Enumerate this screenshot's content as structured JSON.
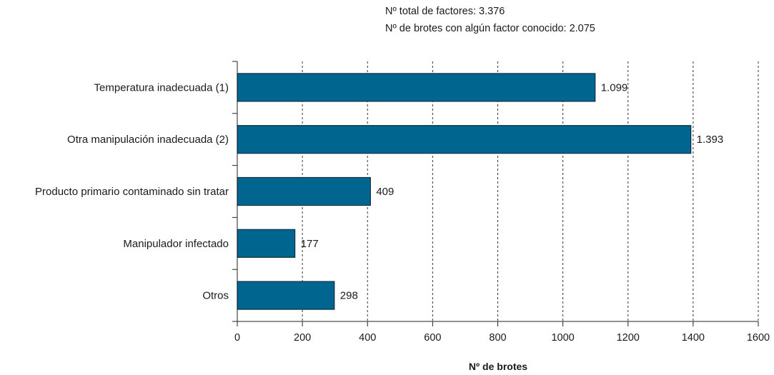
{
  "annotations": [
    "Nº total de factores: 3.376",
    "Nº de brotes con algún factor conocido: 2.075"
  ],
  "chart_data": {
    "type": "bar",
    "orientation": "horizontal",
    "title": "",
    "xlabel": "Nº de brotes",
    "ylabel": "",
    "categories": [
      "Temperatura inadecuada (1)",
      "Otra manipulación inadecuada (2)",
      "Producto primario contaminado sin tratar",
      "Manipulador infectado",
      "Otros"
    ],
    "values": [
      1099,
      1393,
      409,
      177,
      298
    ],
    "value_labels": [
      "1.099",
      "1.393",
      "409",
      "177",
      "298"
    ],
    "xlim": [
      0,
      1600
    ],
    "xticks": [
      0,
      200,
      400,
      600,
      800,
      1000,
      1200,
      1400,
      1600
    ],
    "grid": "vertical dashed",
    "bar_color": "#00668f",
    "bar_edge_color": "#0d2f45"
  }
}
